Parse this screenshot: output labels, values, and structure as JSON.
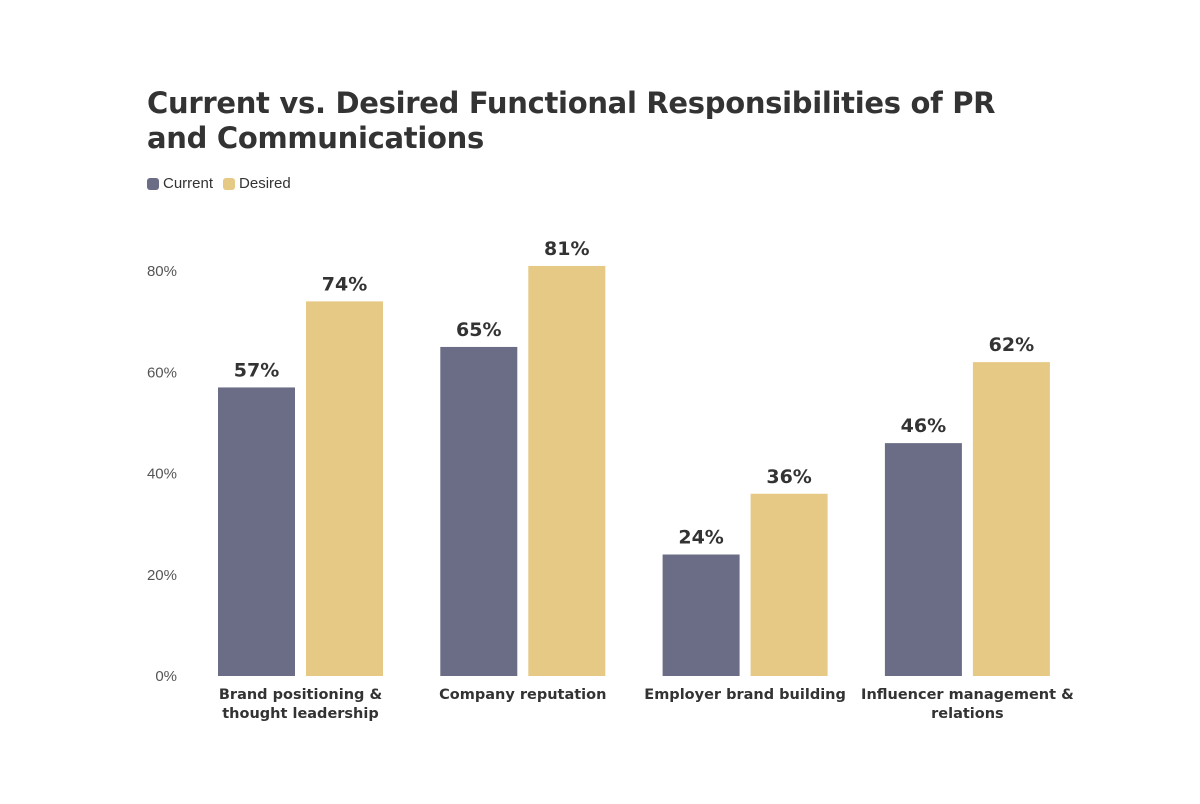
{
  "chart_data": {
    "type": "bar",
    "title": "Current vs. Desired Functional Responsibilities of PR and Communications",
    "categories": [
      [
        "Brand positioning &",
        "thought leadership"
      ],
      [
        "Company reputation"
      ],
      [
        "Employer brand building"
      ],
      [
        "Influencer management &",
        "relations"
      ]
    ],
    "series": [
      {
        "name": "Current",
        "color": "#6b6d87",
        "values": [
          57,
          65,
          24,
          46
        ]
      },
      {
        "name": "Desired",
        "color": "#e5c985",
        "values": [
          74,
          81,
          36,
          62
        ]
      }
    ],
    "value_labels": {
      "Current": [
        "57%",
        "65%",
        "24%",
        "46%"
      ],
      "Desired": [
        "74%",
        "81%",
        "36%",
        "62%"
      ]
    },
    "y_ticks": [
      0,
      20,
      40,
      60,
      80
    ],
    "y_tick_labels": [
      "0%",
      "20%",
      "40%",
      "60%",
      "80%"
    ],
    "ylim": [
      0,
      80
    ],
    "grid": false,
    "legend_position": "top-left"
  }
}
